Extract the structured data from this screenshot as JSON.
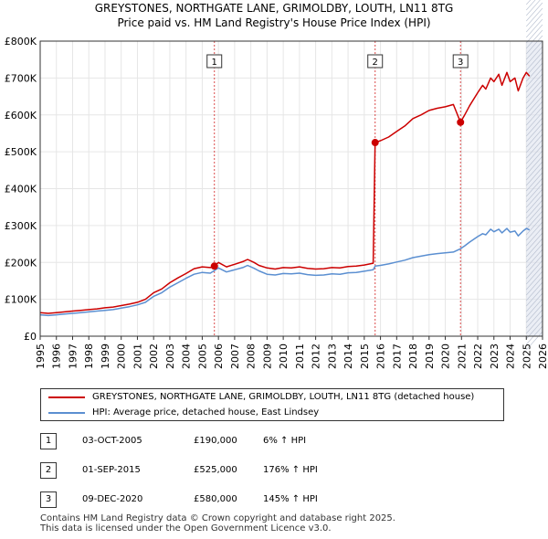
{
  "chart_data": {
    "type": "line",
    "title": "GREYSTONES, NORTHGATE LANE, GRIMOLDBY, LOUTH, LN11 8TG",
    "subtitle": "Price paid vs. HM Land Registry's House Price Index (HPI)",
    "xlabel": "",
    "ylabel": "",
    "xlim": [
      1995,
      2026
    ],
    "ylim": [
      0,
      800000
    ],
    "yticks": [
      {
        "value": 0,
        "label": "£0"
      },
      {
        "value": 100000,
        "label": "£100K"
      },
      {
        "value": 200000,
        "label": "£200K"
      },
      {
        "value": 300000,
        "label": "£300K"
      },
      {
        "value": 400000,
        "label": "£400K"
      },
      {
        "value": 500000,
        "label": "£500K"
      },
      {
        "value": 600000,
        "label": "£600K"
      },
      {
        "value": 700000,
        "label": "£700K"
      },
      {
        "value": 800000,
        "label": "£800K"
      }
    ],
    "xticks": [
      "1995",
      "1996",
      "1997",
      "1998",
      "1999",
      "2000",
      "2001",
      "2002",
      "2003",
      "2004",
      "2005",
      "2006",
      "2007",
      "2008",
      "2009",
      "2010",
      "2011",
      "2012",
      "2013",
      "2014",
      "2015",
      "2016",
      "2017",
      "2018",
      "2019",
      "2020",
      "2021",
      "2022",
      "2023",
      "2024",
      "2025",
      "2026"
    ],
    "future_shade_from": 2025.0,
    "series": [
      {
        "name": "GREYSTONES, NORTHGATE LANE, GRIMOLDBY, LOUTH, LN11 8TG (detached house)",
        "color": "#cc0000",
        "x": [
          1995.0,
          1995.5,
          1996.0,
          1996.5,
          1997.0,
          1997.5,
          1998.0,
          1998.5,
          1999.0,
          1999.5,
          2000.0,
          2000.5,
          2001.0,
          2001.5,
          2002.0,
          2002.5,
          2003.0,
          2003.5,
          2004.0,
          2004.5,
          2005.0,
          2005.5,
          2005.75,
          2006.0,
          2006.5,
          2007.0,
          2007.5,
          2007.8,
          2008.2,
          2008.5,
          2009.0,
          2009.5,
          2010.0,
          2010.5,
          2011.0,
          2011.5,
          2012.0,
          2012.5,
          2013.0,
          2013.5,
          2014.0,
          2014.5,
          2015.0,
          2015.55,
          2015.67,
          2016.0,
          2016.5,
          2017.0,
          2017.5,
          2018.0,
          2018.5,
          2019.0,
          2019.5,
          2020.0,
          2020.5,
          2020.94,
          2021.2,
          2021.5,
          2022.0,
          2022.3,
          2022.5,
          2022.8,
          2023.0,
          2023.3,
          2023.5,
          2023.8,
          2024.0,
          2024.3,
          2024.5,
          2024.8,
          2025.0,
          2025.2
        ],
        "values": [
          64000,
          62000,
          64000,
          66000,
          68000,
          70000,
          72000,
          74000,
          77000,
          79000,
          83000,
          87000,
          92000,
          100000,
          118000,
          128000,
          145000,
          158000,
          170000,
          183000,
          188000,
          186000,
          190000,
          200000,
          188000,
          195000,
          202000,
          208000,
          200000,
          192000,
          185000,
          182000,
          186000,
          185000,
          188000,
          184000,
          182000,
          183000,
          186000,
          185000,
          189000,
          190000,
          193000,
          198000,
          525000,
          530000,
          540000,
          555000,
          570000,
          590000,
          600000,
          612000,
          618000,
          622000,
          628000,
          580000,
          600000,
          625000,
          660000,
          680000,
          670000,
          700000,
          690000,
          710000,
          680000,
          715000,
          690000,
          700000,
          665000,
          700000,
          715000,
          705000
        ]
      },
      {
        "name": "HPI: Average price, detached house, East Lindsey",
        "color": "#5b8fd1",
        "x": [
          1995.0,
          1995.5,
          1996.0,
          1996.5,
          1997.0,
          1997.5,
          1998.0,
          1998.5,
          1999.0,
          1999.5,
          2000.0,
          2000.5,
          2001.0,
          2001.5,
          2002.0,
          2002.5,
          2003.0,
          2003.5,
          2004.0,
          2004.5,
          2005.0,
          2005.5,
          2005.75,
          2006.0,
          2006.5,
          2007.0,
          2007.5,
          2007.8,
          2008.2,
          2008.5,
          2009.0,
          2009.5,
          2010.0,
          2010.5,
          2011.0,
          2011.5,
          2012.0,
          2012.5,
          2013.0,
          2013.5,
          2014.0,
          2014.5,
          2015.0,
          2015.55,
          2015.67,
          2016.0,
          2016.5,
          2017.0,
          2017.5,
          2018.0,
          2018.5,
          2019.0,
          2019.5,
          2020.0,
          2020.5,
          2020.94,
          2021.2,
          2021.5,
          2022.0,
          2022.3,
          2022.5,
          2022.8,
          2023.0,
          2023.3,
          2023.5,
          2023.8,
          2024.0,
          2024.3,
          2024.5,
          2024.8,
          2025.0,
          2025.2
        ],
        "values": [
          58000,
          56000,
          58000,
          60000,
          62000,
          64000,
          66000,
          68000,
          70000,
          72000,
          76000,
          80000,
          85000,
          92000,
          108000,
          118000,
          133000,
          145000,
          157000,
          168000,
          173000,
          171000,
          178000,
          185000,
          174000,
          180000,
          186000,
          192000,
          184000,
          177000,
          168000,
          166000,
          170000,
          169000,
          171000,
          167000,
          165000,
          166000,
          169000,
          168000,
          172000,
          173000,
          176000,
          180000,
          190000,
          192000,
          196000,
          201000,
          206000,
          213000,
          217000,
          221000,
          224000,
          226000,
          228000,
          237000,
          245000,
          255000,
          270000,
          278000,
          275000,
          290000,
          283000,
          290000,
          280000,
          292000,
          282000,
          285000,
          272000,
          285000,
          292000,
          288000
        ]
      }
    ],
    "sales": [
      {
        "id": "1",
        "x": 2005.75,
        "value": 190000,
        "date": "03-OCT-2005",
        "price": "£190,000",
        "hpi": "6% ↑ HPI"
      },
      {
        "id": "2",
        "x": 2015.67,
        "value": 525000,
        "date": "01-SEP-2015",
        "price": "£525,000",
        "hpi": "176% ↑ HPI"
      },
      {
        "id": "3",
        "x": 2020.94,
        "value": 580000,
        "date": "09-DEC-2020",
        "price": "£580,000",
        "hpi": "145% ↑ HPI"
      }
    ]
  },
  "footer": {
    "line1": "Contains HM Land Registry data © Crown copyright and database right 2025.",
    "line2": "This data is licensed under the Open Government Licence v3.0."
  }
}
